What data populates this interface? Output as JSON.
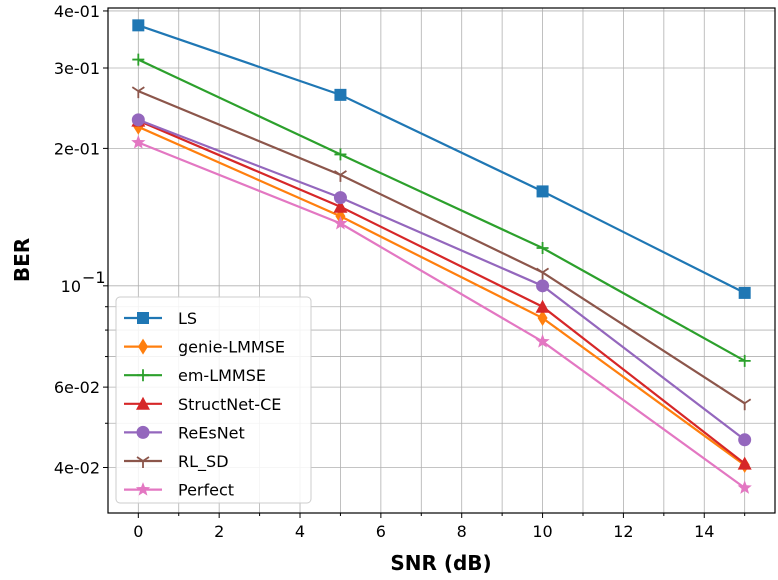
{
  "chart_data": {
    "type": "line",
    "xlabel": "SNR (dB)",
    "ylabel": "BER",
    "x": [
      0,
      5,
      10,
      15
    ],
    "xlim": [
      -0.75,
      15.75
    ],
    "ylim": [
      0.0318,
      0.406
    ],
    "yscale": "log",
    "grid": true,
    "legend_placement": "lower-left",
    "x_ticks": [
      {
        "value": 0,
        "label": "0"
      },
      {
        "value": 2,
        "label": "2"
      },
      {
        "value": 4,
        "label": "4"
      },
      {
        "value": 6,
        "label": "6"
      },
      {
        "value": 8,
        "label": "8"
      },
      {
        "value": 10,
        "label": "10"
      },
      {
        "value": 12,
        "label": "12"
      },
      {
        "value": 14,
        "label": "14"
      }
    ],
    "y_ticks": [
      {
        "value": 0.04,
        "label": "4e-02"
      },
      {
        "value": 0.06,
        "label": "6e-02"
      },
      {
        "value": 0.1,
        "label": "10^-1",
        "base": "10",
        "exp": "−1"
      },
      {
        "value": 0.2,
        "label": "2e-01"
      },
      {
        "value": 0.3,
        "label": "3e-01"
      },
      {
        "value": 0.4,
        "label": "4e-01"
      }
    ],
    "series": [
      {
        "name": "LS",
        "color": "#1f77b4",
        "marker": "square",
        "values": [
          0.372,
          0.262,
          0.161,
          0.0965
        ]
      },
      {
        "name": "genie-LMMSE",
        "color": "#ff7f0e",
        "marker": "thin-diamond",
        "values": [
          0.223,
          0.142,
          0.085,
          0.0405
        ]
      },
      {
        "name": "em-LMMSE",
        "color": "#2ca02c",
        "marker": "plus",
        "values": [
          0.313,
          0.194,
          0.121,
          0.0685
        ]
      },
      {
        "name": "StructNet-CE",
        "color": "#d62728",
        "marker": "triangle-up",
        "values": [
          0.23,
          0.149,
          0.09,
          0.0408
        ]
      },
      {
        "name": "ReEsNet",
        "color": "#9467bd",
        "marker": "circle",
        "values": [
          0.231,
          0.156,
          0.1,
          0.046
        ]
      },
      {
        "name": "RL_SD",
        "color": "#8c564b",
        "marker": "tri-down",
        "values": [
          0.267,
          0.175,
          0.107,
          0.0553
        ]
      },
      {
        "name": "Perfect",
        "color": "#e377c2",
        "marker": "star",
        "values": [
          0.206,
          0.137,
          0.0755,
          0.0361
        ]
      }
    ]
  }
}
